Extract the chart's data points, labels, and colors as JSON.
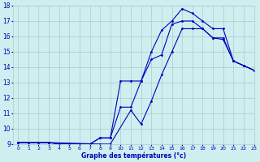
{
  "xlabel": "Graphe des températures (°c)",
  "xlim": [
    -0.5,
    23
  ],
  "ylim": [
    9,
    18
  ],
  "yticks": [
    9,
    10,
    11,
    12,
    13,
    14,
    15,
    16,
    17,
    18
  ],
  "xticks": [
    0,
    1,
    2,
    3,
    4,
    5,
    6,
    7,
    8,
    9,
    10,
    11,
    12,
    13,
    14,
    15,
    16,
    17,
    18,
    19,
    20,
    21,
    22,
    23
  ],
  "bg_color": "#ceeef0",
  "line_color": "#0000bb",
  "grid_color": "#aacccc",
  "line1_x": [
    0,
    1,
    2,
    3,
    4,
    5,
    6,
    7,
    8,
    9,
    10,
    11,
    12,
    13,
    14,
    15,
    16,
    17,
    18,
    19,
    20,
    21,
    22,
    23
  ],
  "line1_y": [
    9.1,
    9.1,
    9.1,
    9.1,
    9.0,
    9.0,
    9.0,
    9.0,
    9.4,
    9.4,
    11.4,
    11.4,
    13.1,
    14.5,
    14.8,
    16.8,
    17.0,
    17.0,
    16.5,
    15.9,
    15.8,
    14.4,
    14.1,
    13.8
  ],
  "line2_x": [
    0,
    1,
    2,
    3,
    4,
    5,
    6,
    7,
    8,
    9,
    10,
    11,
    12,
    13,
    14,
    15,
    16,
    17,
    18,
    19,
    20,
    21,
    22,
    23
  ],
  "line2_y": [
    9.1,
    9.1,
    9.1,
    9.1,
    9.0,
    9.0,
    9.0,
    9.0,
    9.4,
    9.4,
    13.1,
    13.1,
    13.1,
    15.0,
    16.4,
    17.0,
    17.8,
    17.5,
    17.0,
    16.5,
    16.5,
    14.4,
    14.1,
    13.8
  ],
  "line3_x": [
    0,
    3,
    8,
    9,
    11,
    12,
    13,
    14,
    15,
    16,
    17,
    18,
    19,
    20,
    21,
    22,
    23
  ],
  "line3_y": [
    9.1,
    9.1,
    9.0,
    9.0,
    11.2,
    10.3,
    11.8,
    13.5,
    15.0,
    16.5,
    16.5,
    16.5,
    15.9,
    15.9,
    14.4,
    14.1,
    13.8
  ]
}
